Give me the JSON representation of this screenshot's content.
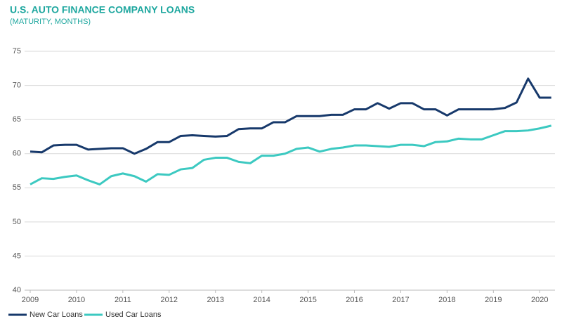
{
  "chart_data": {
    "type": "line",
    "title": "U.S. AUTO FINANCE COMPANY LOANS",
    "subtitle": "(MATURITY, MONTHS)",
    "x": [
      2009,
      2009.25,
      2009.5,
      2009.75,
      2010,
      2010.25,
      2010.5,
      2010.75,
      2011,
      2011.25,
      2011.5,
      2011.75,
      2012,
      2012.25,
      2012.5,
      2012.75,
      2013,
      2013.25,
      2013.5,
      2013.75,
      2014,
      2014.25,
      2014.5,
      2014.75,
      2015,
      2015.25,
      2015.5,
      2015.75,
      2016,
      2016.25,
      2016.5,
      2016.75,
      2017,
      2017.25,
      2017.5,
      2017.75,
      2018,
      2018.25,
      2018.5,
      2018.75,
      2019,
      2019.25,
      2019.5,
      2019.75,
      2020,
      2020.25
    ],
    "series": [
      {
        "name": "New Car Loans",
        "color": "#17396b",
        "values": [
          60.3,
          60.2,
          61.2,
          61.3,
          61.3,
          60.6,
          60.7,
          60.8,
          60.8,
          60.0,
          60.7,
          61.7,
          61.7,
          62.6,
          62.7,
          62.6,
          62.5,
          62.6,
          63.6,
          63.7,
          63.7,
          64.6,
          64.6,
          65.5,
          65.5,
          65.5,
          65.7,
          65.7,
          66.5,
          66.5,
          67.4,
          66.6,
          67.4,
          67.4,
          66.5,
          66.5,
          65.6,
          66.5,
          66.5,
          66.5,
          66.5,
          66.7,
          67.5,
          71.0,
          68.2,
          68.2
        ]
      },
      {
        "name": "Used Car Loans",
        "color": "#3cc9c1",
        "values": [
          55.5,
          56.4,
          56.3,
          56.6,
          56.8,
          56.1,
          55.5,
          56.7,
          57.1,
          56.7,
          55.9,
          57.0,
          56.9,
          57.7,
          57.9,
          59.1,
          59.4,
          59.4,
          58.8,
          58.6,
          59.7,
          59.7,
          60.0,
          60.7,
          60.9,
          60.3,
          60.7,
          60.9,
          61.2,
          61.2,
          61.1,
          61.0,
          61.3,
          61.3,
          61.1,
          61.7,
          61.8,
          62.2,
          62.1,
          62.1,
          62.7,
          63.3,
          63.3,
          63.4,
          63.7,
          64.1
        ]
      }
    ],
    "xlim": [
      2009,
      2020.33
    ],
    "xticks": [
      2009,
      2010,
      2011,
      2012,
      2013,
      2014,
      2015,
      2016,
      2017,
      2018,
      2019,
      2020
    ],
    "ylim": [
      40,
      75
    ],
    "yticks": [
      40,
      45,
      50,
      55,
      60,
      65,
      70,
      75
    ],
    "grid": true,
    "legend": "bottom"
  }
}
